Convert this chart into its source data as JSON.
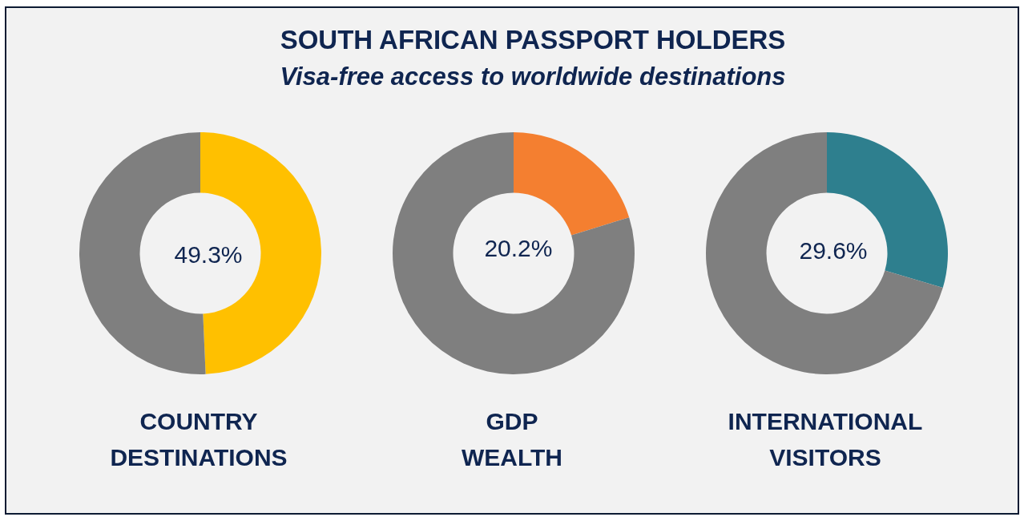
{
  "chart_data": [
    {
      "type": "donut",
      "xlabel": "COUNTRY DESTINATIONS",
      "categories": [
        null,
        null
      ],
      "values": [
        49.3,
        50.7
      ],
      "colors": [
        "#ffc000",
        "#7f7f7f"
      ],
      "value_labels": [
        "49.3%",
        null
      ]
    },
    {
      "type": "donut",
      "title": "SOUTH AFRICAN PASSPORT HOLDERS",
      "subtitle": "Visa-free access to worldwide destinations",
      "xlabel": "GDP WEALTH",
      "categories": [
        null,
        null
      ],
      "values": [
        20.2,
        79.8
      ],
      "colors": [
        "#f47f30",
        "#7f7f7f"
      ],
      "value_labels": [
        "20.2%",
        null
      ]
    },
    {
      "type": "donut",
      "xlabel": "INTERNATIONAL VISITORS",
      "categories": [
        null,
        null
      ],
      "values": [
        29.6,
        70.4
      ],
      "colors": [
        "#2e7f8e",
        "#7f7f7f"
      ],
      "value_labels": [
        "29.6%",
        null
      ]
    }
  ]
}
